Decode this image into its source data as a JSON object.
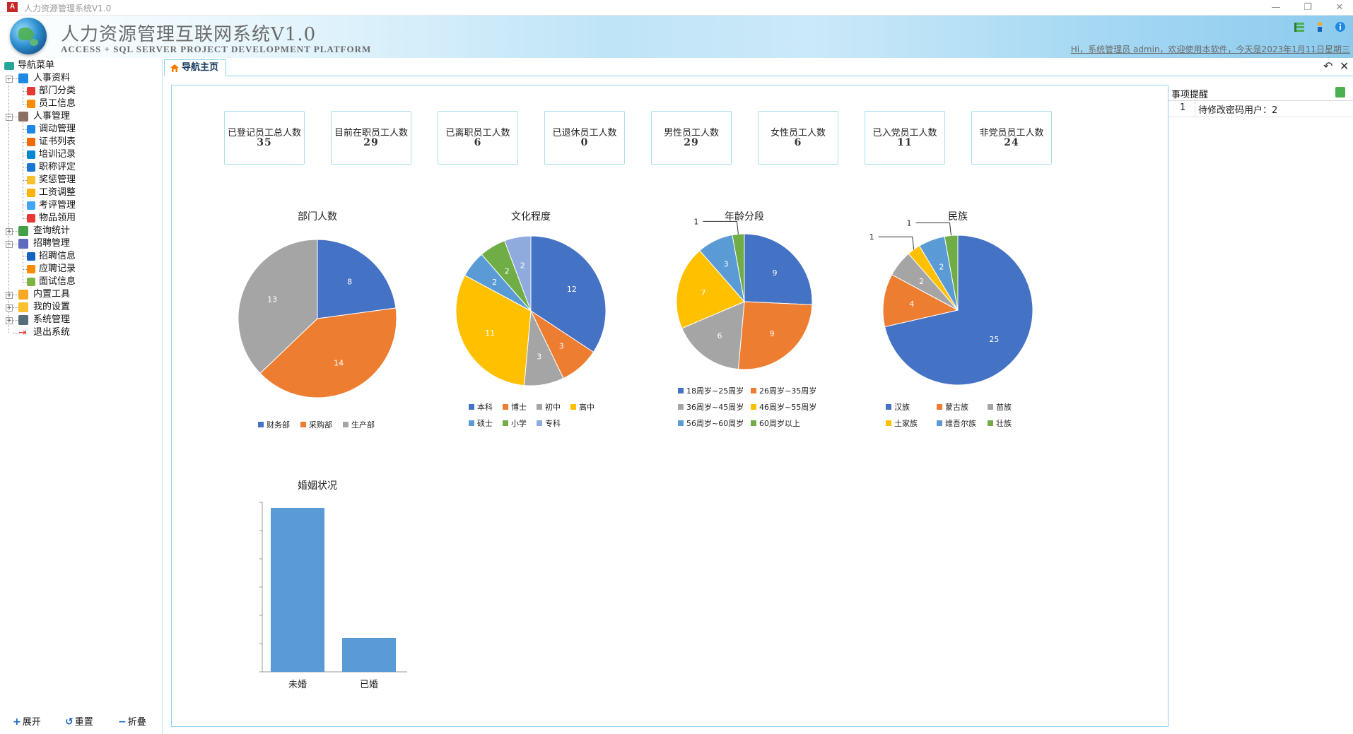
{
  "window": {
    "title": "人力资源管理系统V1.0",
    "controls": [
      "—",
      "❐",
      "✕"
    ]
  },
  "header": {
    "app_title": "人力资源管理互联网系统V1.0",
    "subtitle": "ACCESS + SQL SERVER PROJECT DEVELOPMENT PLATFORM",
    "welcome": "Hi，系统管理员 admin，欢迎使用本软件，今天是2023年1月11日星期三",
    "icons": [
      "list-icon",
      "user-pin-icon",
      "info-icon"
    ]
  },
  "sidebar": {
    "root": "导航菜单",
    "groups": [
      {
        "label": "人事资料",
        "expanded": true,
        "icon": "people-icon",
        "children": [
          {
            "label": "部门分类",
            "icon": "org-chart-icon"
          },
          {
            "label": "员工信息",
            "icon": "employee-icon"
          }
        ]
      },
      {
        "label": "人事管理",
        "expanded": true,
        "icon": "staff-icon",
        "children": [
          {
            "label": "调动管理",
            "icon": "transfer-icon"
          },
          {
            "label": "证书列表",
            "icon": "certificate-icon"
          },
          {
            "label": "培训记录",
            "icon": "training-icon"
          },
          {
            "label": "职称评定",
            "icon": "star-icon"
          },
          {
            "label": "奖惩管理",
            "icon": "document-icon"
          },
          {
            "label": "工资调整",
            "icon": "salary-icon"
          },
          {
            "label": "考评管理",
            "icon": "evaluation-icon"
          },
          {
            "label": "物品领用",
            "icon": "items-icon"
          }
        ]
      },
      {
        "label": "查询统计",
        "expanded": false,
        "icon": "chart-icon",
        "children": []
      },
      {
        "label": "招聘管理",
        "expanded": true,
        "icon": "recruit-icon",
        "children": [
          {
            "label": "招聘信息",
            "icon": "monitor-icon"
          },
          {
            "label": "应聘记录",
            "icon": "record-icon"
          },
          {
            "label": "面试信息",
            "icon": "interview-icon"
          }
        ]
      },
      {
        "label": "内置工具",
        "expanded": false,
        "icon": "tools-icon",
        "children": []
      },
      {
        "label": "我的设置",
        "expanded": false,
        "icon": "bulb-icon",
        "children": []
      },
      {
        "label": "系统管理",
        "expanded": false,
        "icon": "gear-icon",
        "children": []
      },
      {
        "label": "退出系统",
        "expanded": null,
        "icon": "exit-icon",
        "children": []
      }
    ],
    "footer": {
      "expand": "展开",
      "reset": "重置",
      "collapse": "折叠"
    }
  },
  "tabs": [
    {
      "label": "导航主页",
      "active": true
    }
  ],
  "stats": [
    {
      "label": "已登记员工总人数",
      "value": "35"
    },
    {
      "label": "目前在职员工人数",
      "value": "29"
    },
    {
      "label": "已离职员工人数",
      "value": "6"
    },
    {
      "label": "已退休员工人数",
      "value": "0"
    },
    {
      "label": "男性员工人数",
      "value": "29"
    },
    {
      "label": "女性员工人数",
      "value": "6"
    },
    {
      "label": "已入党员工人数",
      "value": "11"
    },
    {
      "label": "非党员员工人数",
      "value": "24"
    }
  ],
  "chart_data": [
    {
      "type": "pie",
      "title": "部门人数",
      "legend_position": "bottom",
      "categories": [
        "财务部",
        "采购部",
        "生产部"
      ],
      "values": [
        8,
        14,
        13
      ],
      "colors": [
        "#4472c4",
        "#ed7d31",
        "#a5a5a5"
      ]
    },
    {
      "type": "pie",
      "title": "文化程度",
      "legend_position": "bottom",
      "categories": [
        "本科",
        "博士",
        "初中",
        "高中",
        "硕士",
        "小学",
        "专科"
      ],
      "values": [
        12,
        3,
        3,
        11,
        2,
        2,
        2
      ],
      "colors": [
        "#4472c4",
        "#ed7d31",
        "#a5a5a5",
        "#ffc000",
        "#5b9bd5",
        "#70ad47",
        "#8faadc"
      ]
    },
    {
      "type": "pie",
      "title": "年龄分段",
      "legend_position": "bottom",
      "categories": [
        "18周岁~25周岁",
        "26周岁~35周岁",
        "36周岁~45周岁",
        "46周岁~55周岁",
        "56周岁~60周岁",
        "60周岁以上"
      ],
      "values": [
        9,
        9,
        6,
        7,
        3,
        1
      ],
      "colors": [
        "#4472c4",
        "#ed7d31",
        "#a5a5a5",
        "#ffc000",
        "#5b9bd5",
        "#70ad47"
      ]
    },
    {
      "type": "pie",
      "title": "民族",
      "legend_position": "bottom",
      "categories": [
        "汉族",
        "蒙古族",
        "苗族",
        "土家族",
        "维吾尔族",
        "壮族"
      ],
      "values": [
        25,
        4,
        2,
        1,
        2,
        1
      ],
      "colors": [
        "#4472c4",
        "#ed7d31",
        "#a5a5a5",
        "#ffc000",
        "#5b9bd5",
        "#70ad47"
      ]
    },
    {
      "type": "bar",
      "title": "婚姻状况",
      "categories": [
        "未婚",
        "已婚"
      ],
      "values": [
        29,
        6
      ],
      "ylim": [
        0,
        30
      ],
      "colors": [
        "#5b9bd5"
      ],
      "grid": false
    }
  ],
  "notice": {
    "title": "事项提醒",
    "rows": [
      {
        "index": "1",
        "text": "待修改密码用户：2"
      }
    ]
  }
}
